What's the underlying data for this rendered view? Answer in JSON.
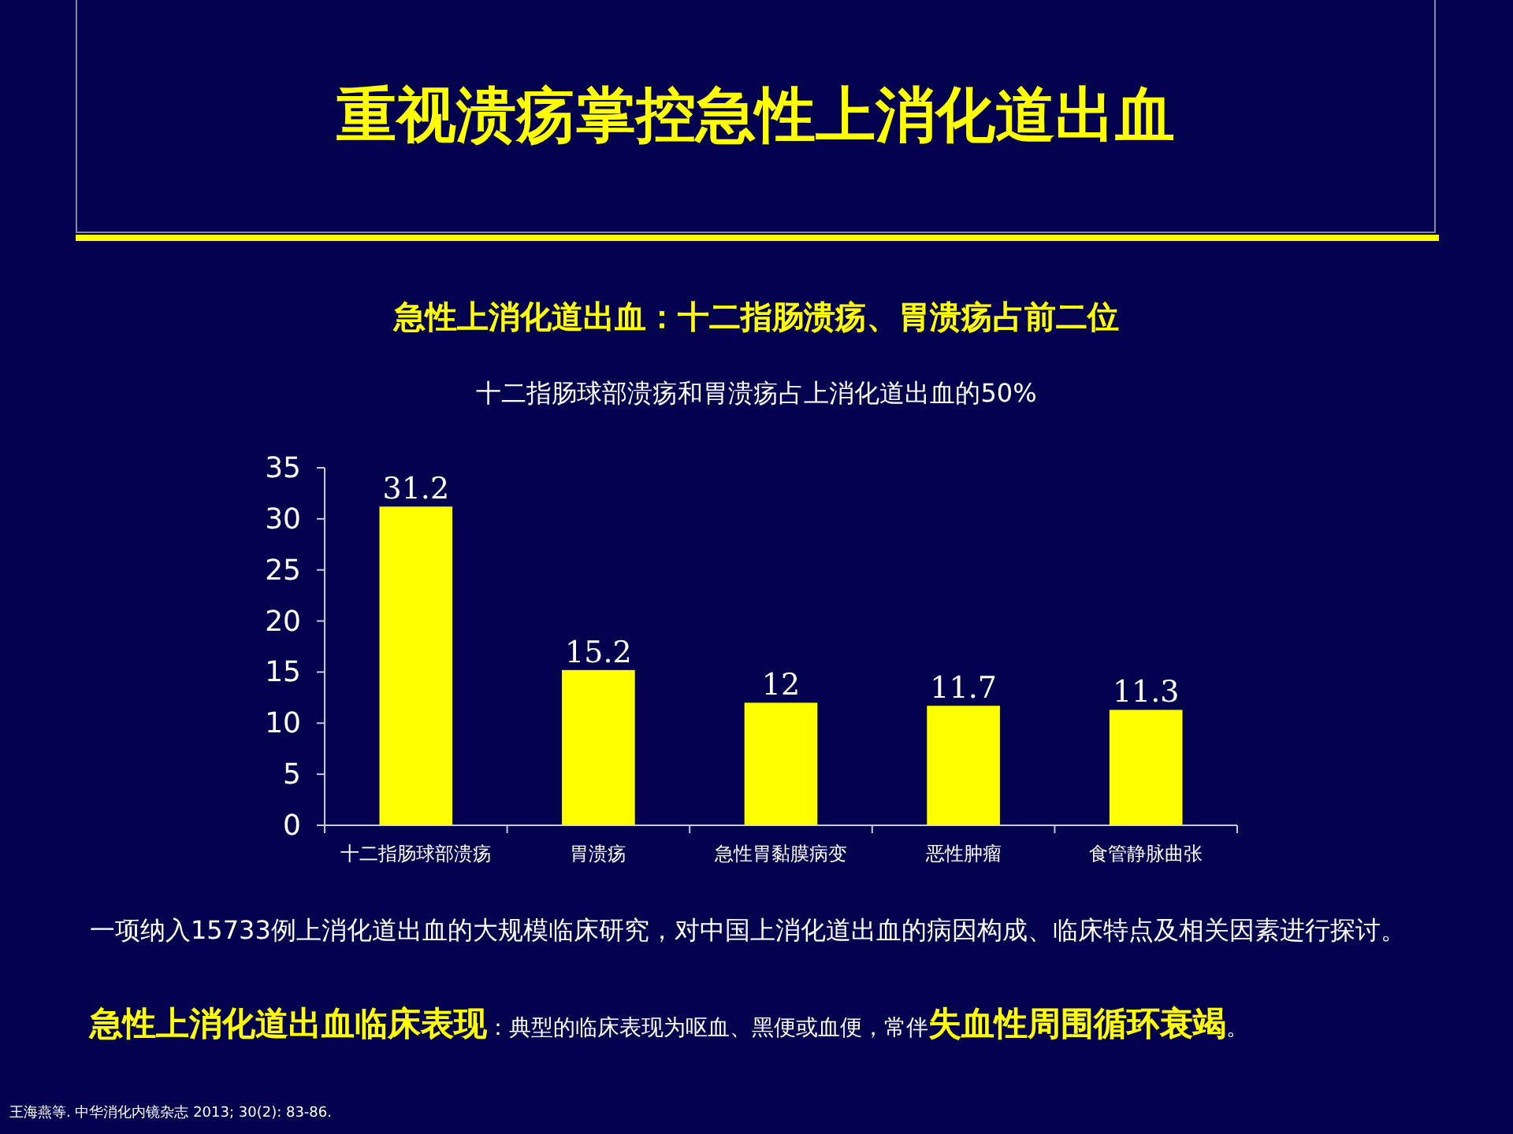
{
  "chart_data": {
    "type": "bar",
    "title": "重视溃疡掌控急性上消化道出血",
    "subtitle": "急性上消化道出血：十二指肠溃疡、胃溃疡占前二位",
    "categories": [
      "十二指肠球部溃疡",
      "胃溃疡",
      "急性胃黏膜病变",
      "恶性肿瘤",
      "食管静脉曲张"
    ],
    "values": [
      31.2,
      15.2,
      12,
      11.7,
      11.3
    ],
    "color": "#ffff00",
    "ylim": [
      0,
      35
    ],
    "yticks": [
      0,
      5,
      10,
      15,
      20,
      25,
      30,
      35
    ],
    "data_labels": true,
    "grid": false,
    "annotations": [
      "十二指肠球部溃疡和胃溃疡占上消化道出血的50%",
      "一项纳入15733例上消化道出血的大规模临床研究，对中国上消化道出血的病因构成、临床特点及相关因素进行探讨。",
      "**急性上消化道出血临床表现**：典型的临床表现为呕血、黑便或血便，常伴**失血性周围循环衰竭**。",
      "王海燕等. 中华消化内镜杂志 2013; 30(2): 83-86."
    ]
  }
}
